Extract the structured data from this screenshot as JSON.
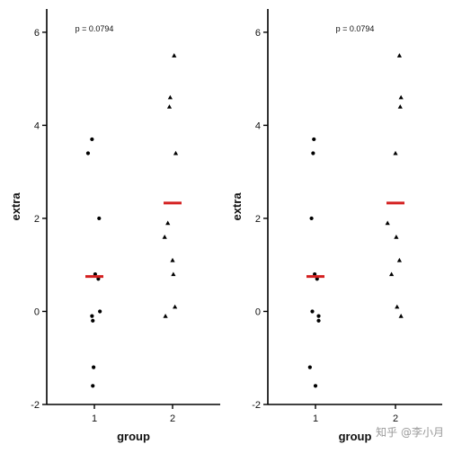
{
  "watermark": "知乎 @李小月",
  "chart_data": [
    {
      "type": "scatter",
      "subtype": "jitter-strip",
      "title": "",
      "annotation": "p = 0.0794",
      "xlabel": "group",
      "ylabel": "extra",
      "categories": [
        "1",
        "2"
      ],
      "ylim": [
        -2,
        6.5
      ],
      "yticks": [
        -2,
        0,
        2,
        4,
        6
      ],
      "series": [
        {
          "category": "1",
          "marker": "circle",
          "values": [
            0.7,
            -1.6,
            -0.2,
            -1.2,
            -0.1,
            3.4,
            3.7,
            0.8,
            0.0,
            2.0
          ],
          "mean": 0.75,
          "jitter": [
            0.05,
            -0.02,
            -0.02,
            -0.01,
            -0.03,
            -0.08,
            -0.03,
            0.01,
            0.07,
            0.06
          ]
        },
        {
          "category": "2",
          "marker": "triangle",
          "values": [
            1.9,
            0.8,
            1.1,
            0.1,
            -0.1,
            4.4,
            5.5,
            1.6,
            4.6,
            3.4
          ],
          "mean": 2.33,
          "jitter": [
            -0.06,
            0.01,
            0.0,
            0.03,
            -0.09,
            -0.04,
            0.02,
            -0.1,
            -0.03,
            0.04
          ]
        }
      ],
      "mean_color": "#d42020",
      "point_color": "#000000"
    },
    {
      "type": "scatter",
      "subtype": "jitter-strip",
      "title": "",
      "annotation": "p = 0.0794",
      "xlabel": "group",
      "ylabel": "extra",
      "categories": [
        "1",
        "2"
      ],
      "ylim": [
        -2,
        6.5
      ],
      "yticks": [
        -2,
        0,
        2,
        4,
        6
      ],
      "series": [
        {
          "category": "1",
          "marker": "circle",
          "values": [
            0.7,
            -1.6,
            -0.2,
            -1.2,
            -0.1,
            3.4,
            3.7,
            0.8,
            0.0,
            2.0
          ],
          "mean": 0.75,
          "jitter": [
            0.02,
            0.0,
            0.04,
            -0.07,
            0.04,
            -0.03,
            -0.02,
            -0.01,
            -0.04,
            -0.05
          ]
        },
        {
          "category": "2",
          "marker": "triangle",
          "values": [
            1.9,
            0.8,
            1.1,
            0.1,
            -0.1,
            4.4,
            5.5,
            1.6,
            4.6,
            3.4
          ],
          "mean": 2.33,
          "jitter": [
            -0.1,
            -0.05,
            0.05,
            0.02,
            0.07,
            0.06,
            0.05,
            0.01,
            0.07,
            0.0
          ]
        }
      ],
      "mean_color": "#d42020",
      "point_color": "#000000"
    }
  ]
}
